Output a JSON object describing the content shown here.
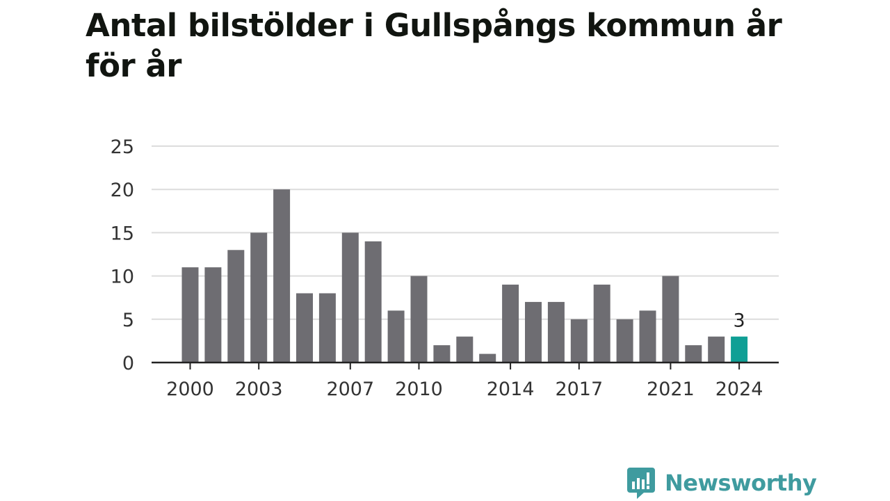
{
  "title": "Antal bilstölder i Gullspångs kommun år för år",
  "brand": {
    "name": "Newsworthy",
    "icon": "chat-bubble-bar-chart-icon",
    "color": "#3f9b9f"
  },
  "colors": {
    "bar": "#6e6d72",
    "highlight": "#0f9f95",
    "grid": "#dcdcdc",
    "axis": "#222222"
  },
  "chart_data": {
    "type": "bar",
    "title": "Antal bilstölder i Gullspångs kommun år för år",
    "xlabel": "",
    "ylabel": "",
    "categories": [
      2000,
      2001,
      2002,
      2003,
      2004,
      2005,
      2006,
      2007,
      2008,
      2009,
      2010,
      2011,
      2012,
      2013,
      2014,
      2015,
      2016,
      2017,
      2018,
      2019,
      2020,
      2021,
      2022,
      2023,
      2024
    ],
    "values": [
      11,
      11,
      13,
      15,
      20,
      8,
      8,
      15,
      14,
      6,
      10,
      2,
      3,
      1,
      9,
      7,
      7,
      5,
      9,
      5,
      6,
      10,
      2,
      3,
      3
    ],
    "highlight_category": 2024,
    "highlight_value_label": "3",
    "x_tick_labels": [
      "2000",
      "2003",
      "2007",
      "2010",
      "2014",
      "2017",
      "2021",
      "2024"
    ],
    "y_ticks": [
      "0",
      "5",
      "10",
      "15",
      "20",
      "25"
    ],
    "ylim": [
      0,
      25
    ],
    "grid": true,
    "legend": "none"
  }
}
